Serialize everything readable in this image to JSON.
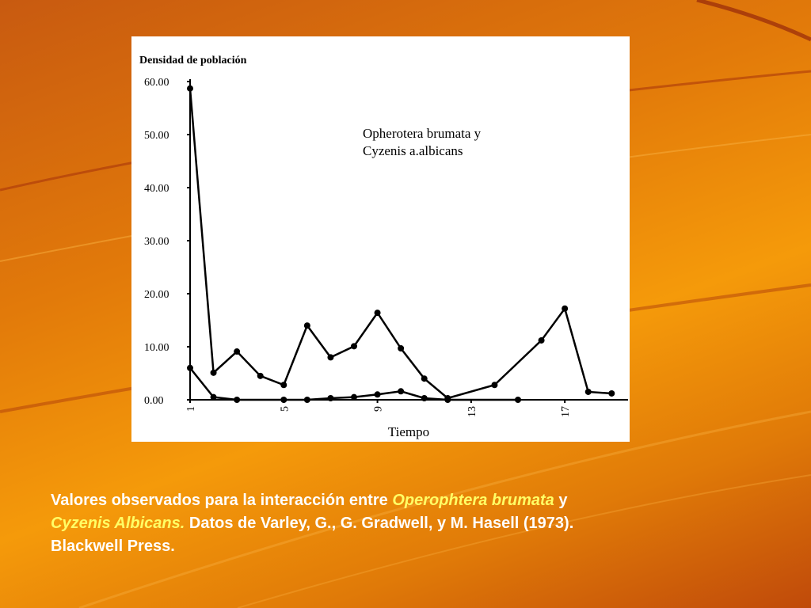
{
  "chart_data": {
    "type": "line",
    "y_label": "Densidad de población",
    "x_label": "Tiempo",
    "annotation": [
      "Opherotera brumata y",
      "Cyzenis a.albicans"
    ],
    "xlim": [
      1,
      19.7
    ],
    "xticks": [
      1,
      5,
      9,
      13,
      17
    ],
    "ylim": [
      0,
      60
    ],
    "yticks": [
      {
        "value": 0,
        "label": "0.00"
      },
      {
        "value": 10,
        "label": "10.00"
      },
      {
        "value": 20,
        "label": "20.00"
      },
      {
        "value": 30,
        "label": "30.00"
      },
      {
        "value": 40,
        "label": "40.00"
      },
      {
        "value": 50,
        "label": "50.00"
      },
      {
        "value": 60,
        "label": "60.00"
      }
    ],
    "series": [
      {
        "color": "#000000",
        "x": [
          1,
          2,
          3,
          4,
          5,
          6,
          7,
          8,
          9,
          10,
          11,
          12,
          14,
          16,
          17,
          18,
          19
        ],
        "values": [
          58.7,
          5.1,
          9.1,
          4.5,
          2.8,
          14,
          8,
          10.1,
          16.4,
          9.7,
          4,
          0.3,
          2.8,
          11.2,
          17.2,
          1.5,
          1.2
        ]
      },
      {
        "color": "#000000",
        "x": [
          1,
          2,
          3,
          5,
          6,
          7,
          8,
          9,
          10,
          11,
          12,
          15
        ],
        "values": [
          6,
          0.5,
          0,
          0,
          0,
          0.3,
          0.5,
          1,
          1.6,
          0.3,
          0,
          0
        ]
      }
    ]
  },
  "caption": [
    "Valores observados para la interacción entre ",
    "Operophtera brumata",
    " y",
    "Cyzenis Albicans.",
    " Datos de Varley, G., G. Gradwell, y M. Hasell (1973).",
    "Blackwell Press."
  ]
}
